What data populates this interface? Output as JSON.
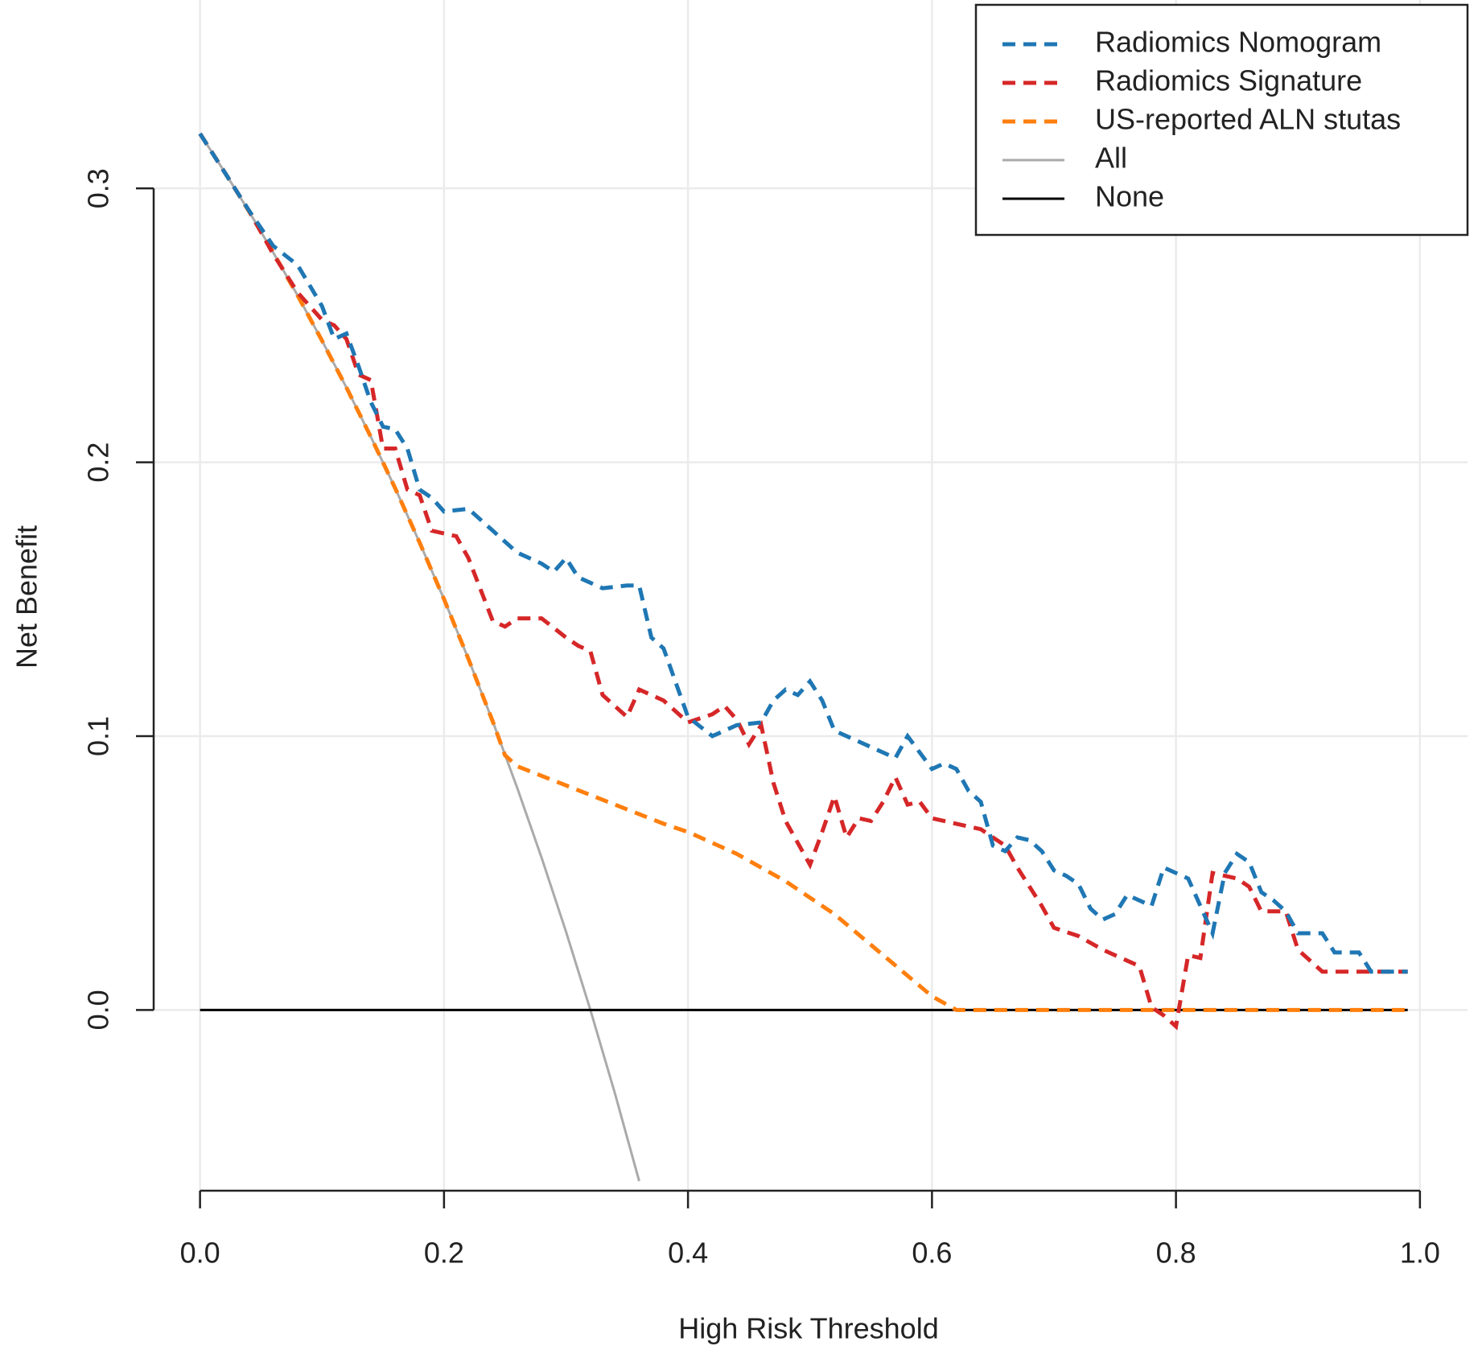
{
  "chart_data": {
    "type": "line",
    "x_label": "High Risk Threshold",
    "y_label": "Net Benefit",
    "xlim": [
      -0.038,
      1.039
    ],
    "ylim": [
      -0.066,
      0.3688
    ],
    "xticks": [
      {
        "value": 0,
        "label": "0.0"
      },
      0.2,
      0.4,
      0.6,
      0.8,
      {
        "value": 1,
        "label": "1.0"
      }
    ],
    "yticks": [
      {
        "value": 0,
        "label": "0.0"
      },
      0.1,
      0.2,
      0.3
    ],
    "grid": true,
    "legend": "topright",
    "series": [
      {
        "name": "Radiomics Nomogram",
        "color": "#1f77b4",
        "linestyle": "dashed",
        "x": [
          0,
          0.02,
          0.04,
          0.06,
          0.08,
          0.1,
          0.11,
          0.12,
          0.13,
          0.14,
          0.15,
          0.16,
          0.17,
          0.18,
          0.19,
          0.2,
          0.22,
          0.24,
          0.26,
          0.28,
          0.29,
          0.3,
          0.31,
          0.33,
          0.35,
          0.36,
          0.37,
          0.38,
          0.4,
          0.42,
          0.44,
          0.46,
          0.47,
          0.48,
          0.49,
          0.5,
          0.51,
          0.52,
          0.54,
          0.56,
          0.57,
          0.58,
          0.59,
          0.6,
          0.61,
          0.62,
          0.63,
          0.64,
          0.65,
          0.66,
          0.67,
          0.68,
          0.69,
          0.7,
          0.71,
          0.72,
          0.73,
          0.74,
          0.75,
          0.76,
          0.77,
          0.78,
          0.79,
          0.8,
          0.81,
          0.82,
          0.83,
          0.84,
          0.85,
          0.86,
          0.87,
          0.88,
          0.89,
          0.9,
          0.92,
          0.93,
          0.95,
          0.96,
          0.99
        ],
        "values": [
          0.32,
          0.306,
          0.292,
          0.279,
          0.272,
          0.257,
          0.245,
          0.247,
          0.235,
          0.222,
          0.213,
          0.212,
          0.205,
          0.19,
          0.187,
          0.182,
          0.183,
          0.175,
          0.167,
          0.163,
          0.16,
          0.165,
          0.158,
          0.154,
          0.155,
          0.155,
          0.136,
          0.132,
          0.107,
          0.1,
          0.104,
          0.105,
          0.113,
          0.117,
          0.115,
          0.12,
          0.113,
          0.102,
          0.098,
          0.094,
          0.092,
          0.1,
          0.094,
          0.088,
          0.09,
          0.088,
          0.08,
          0.076,
          0.06,
          0.058,
          0.063,
          0.062,
          0.058,
          0.051,
          0.049,
          0.046,
          0.037,
          0.033,
          0.035,
          0.042,
          0.04,
          0.038,
          0.052,
          0.05,
          0.048,
          0.038,
          0.028,
          0.05,
          0.057,
          0.054,
          0.043,
          0.04,
          0.036,
          0.028,
          0.028,
          0.021,
          0.021,
          0.014,
          0.014
        ]
      },
      {
        "name": "Radiomics Signature",
        "color": "#d62728",
        "linestyle": "dashed",
        "x": [
          0,
          0.02,
          0.04,
          0.06,
          0.08,
          0.1,
          0.11,
          0.12,
          0.13,
          0.14,
          0.15,
          0.16,
          0.17,
          0.18,
          0.19,
          0.2,
          0.21,
          0.22,
          0.24,
          0.25,
          0.26,
          0.28,
          0.3,
          0.31,
          0.32,
          0.33,
          0.35,
          0.36,
          0.38,
          0.4,
          0.42,
          0.43,
          0.44,
          0.45,
          0.46,
          0.47,
          0.48,
          0.5,
          0.51,
          0.52,
          0.53,
          0.54,
          0.55,
          0.56,
          0.57,
          0.58,
          0.59,
          0.6,
          0.62,
          0.64,
          0.65,
          0.66,
          0.67,
          0.68,
          0.69,
          0.7,
          0.72,
          0.74,
          0.76,
          0.77,
          0.78,
          0.79,
          0.8,
          0.81,
          0.82,
          0.83,
          0.85,
          0.86,
          0.87,
          0.89,
          0.9,
          0.92,
          0.99
        ],
        "values": [
          0.32,
          0.306,
          0.292,
          0.276,
          0.262,
          0.252,
          0.25,
          0.245,
          0.232,
          0.23,
          0.205,
          0.205,
          0.19,
          0.188,
          0.175,
          0.174,
          0.173,
          0.165,
          0.142,
          0.14,
          0.143,
          0.143,
          0.136,
          0.133,
          0.131,
          0.115,
          0.107,
          0.117,
          0.113,
          0.105,
          0.108,
          0.111,
          0.106,
          0.097,
          0.104,
          0.083,
          0.069,
          0.053,
          0.065,
          0.078,
          0.063,
          0.07,
          0.069,
          0.076,
          0.085,
          0.075,
          0.076,
          0.07,
          0.068,
          0.066,
          0.063,
          0.06,
          0.052,
          0.045,
          0.038,
          0.03,
          0.027,
          0.022,
          0.018,
          0.016,
          0.001,
          -0.002,
          -0.006,
          0.02,
          0.019,
          0.05,
          0.048,
          0.045,
          0.036,
          0.036,
          0.022,
          0.014,
          0.014
        ]
      },
      {
        "name": "US-reported ALN stutas",
        "color": "#ff7f0e",
        "linestyle": "dashed",
        "x": [
          0,
          0.02,
          0.04,
          0.06,
          0.08,
          0.1,
          0.12,
          0.14,
          0.16,
          0.18,
          0.2,
          0.22,
          0.24,
          0.25,
          0.26,
          0.3,
          0.34,
          0.38,
          0.4,
          0.44,
          0.48,
          0.52,
          0.56,
          0.6,
          0.62,
          0.99
        ],
        "values": [
          0.32,
          0.3061,
          0.2917,
          0.2766,
          0.2609,
          0.2444,
          0.2273,
          0.2093,
          0.1905,
          0.1707,
          0.15,
          0.1282,
          0.1053,
          0.093,
          0.089,
          0.082,
          0.075,
          0.068,
          0.065,
          0.057,
          0.047,
          0.035,
          0.02,
          0.005,
          0,
          0
        ]
      },
      {
        "name": "All",
        "color": "#aaaaaa",
        "linestyle": "solid",
        "x": [
          0,
          0.02,
          0.04,
          0.06,
          0.08,
          0.1,
          0.12,
          0.14,
          0.16,
          0.18,
          0.2,
          0.22,
          0.24,
          0.26,
          0.28,
          0.3,
          0.32,
          0.34,
          0.36
        ],
        "values": [
          0.32,
          0.3061,
          0.2917,
          0.2766,
          0.2609,
          0.2444,
          0.2273,
          0.2093,
          0.1905,
          0.1707,
          0.15,
          0.1282,
          0.1053,
          0.0811,
          0.0556,
          0.0286,
          0,
          -0.0303,
          -0.0625
        ]
      },
      {
        "name": "None",
        "color": "#000000",
        "linestyle": "solid",
        "x": [
          0,
          0.99
        ],
        "values": [
          0,
          0
        ]
      }
    ]
  }
}
